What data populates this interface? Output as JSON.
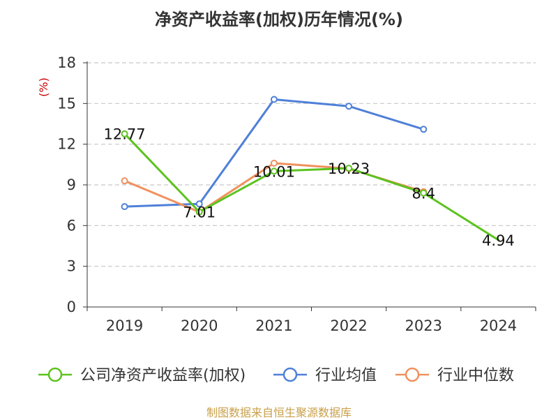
{
  "chart_data": {
    "type": "line",
    "title": "净资产收益率(加权)历年情况(%)",
    "ylabel": "(%)",
    "xlabel": "",
    "ylim": [
      0,
      18
    ],
    "yticks": [
      0,
      3,
      6,
      9,
      12,
      15,
      18
    ],
    "categories": [
      "2019",
      "2020",
      "2021",
      "2022",
      "2023",
      "2024"
    ],
    "grid": "horizontal dashed",
    "legend_position": "bottom",
    "series": [
      {
        "name": "公司净资产收益率(加权)",
        "color": "#5cc31f",
        "values": [
          12.77,
          7.01,
          10.01,
          10.23,
          8.4,
          4.94
        ],
        "labels": [
          "12.77",
          "7.01",
          "10.01",
          "10.23",
          "8.4",
          "4.94"
        ]
      },
      {
        "name": "行业均值",
        "color": "#4f80d8",
        "values": [
          7.4,
          7.6,
          15.3,
          14.8,
          13.1,
          null
        ]
      },
      {
        "name": "行业中位数",
        "color": "#f0915e",
        "values": [
          9.3,
          7.0,
          10.6,
          10.2,
          8.5,
          null
        ]
      }
    ]
  },
  "source": "制图数据来自恒生聚源数据库"
}
